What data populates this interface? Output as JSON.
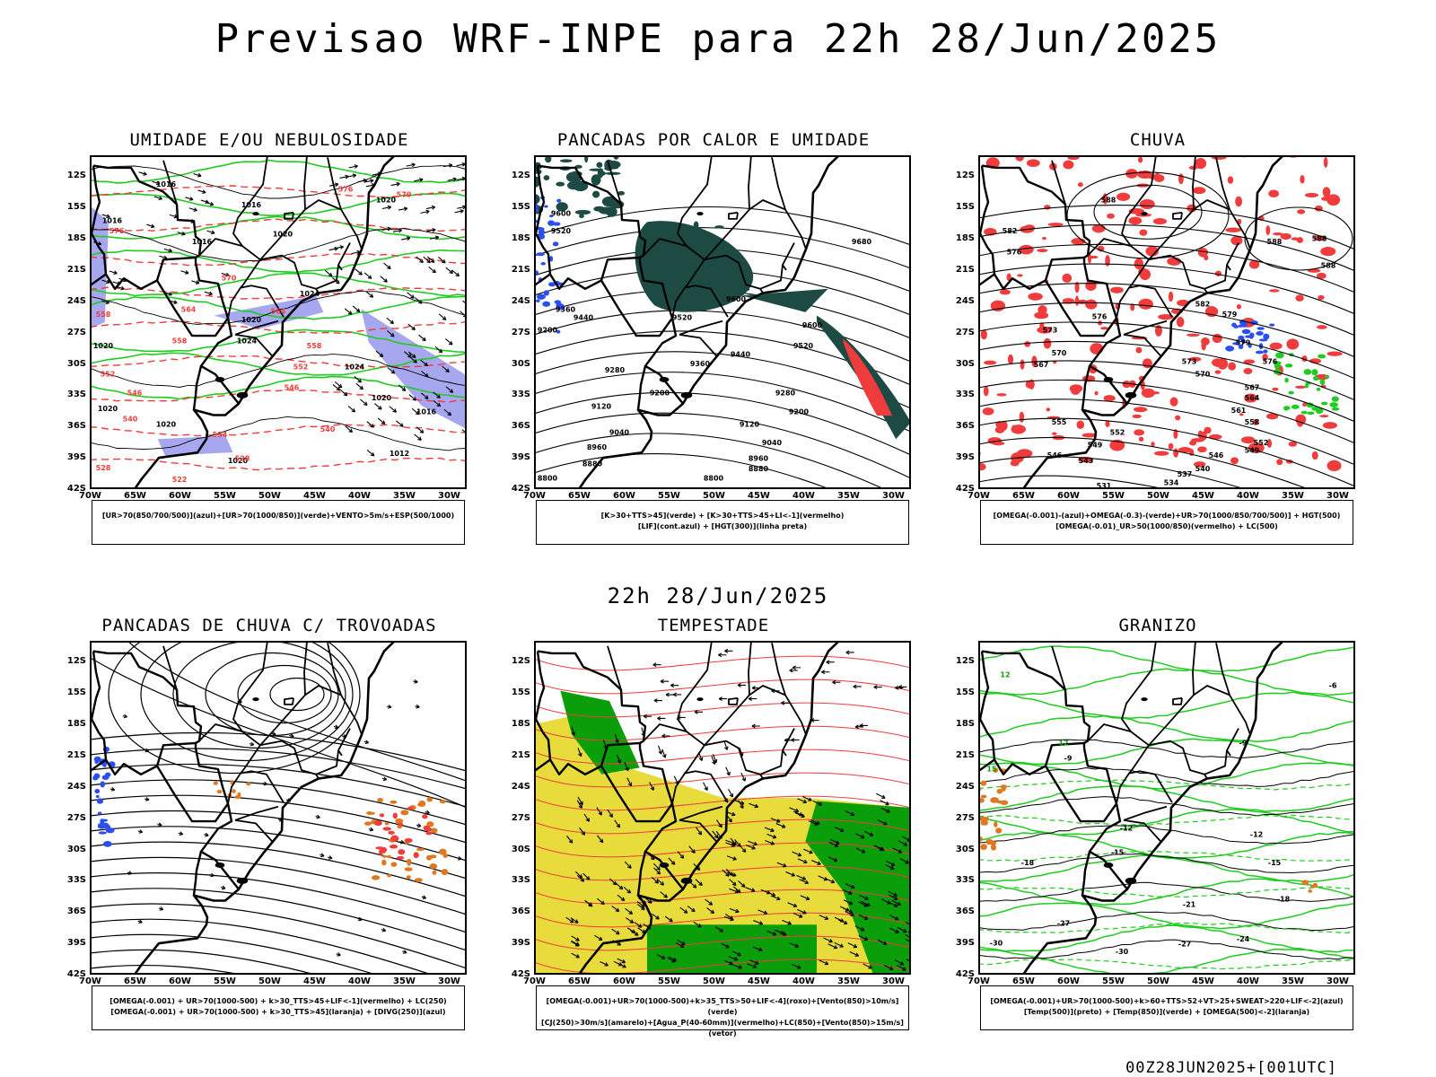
{
  "header": {
    "main_title": "Previsao WRF-INPE  para 22h 28/Jun/2025",
    "mid_title": "22h 28/Jun/2025",
    "footer": "00Z28JUN2025+[001UTC]"
  },
  "axes": {
    "lat_labels": [
      "12S",
      "15S",
      "18S",
      "21S",
      "24S",
      "27S",
      "30S",
      "33S",
      "36S",
      "39S",
      "42S"
    ],
    "lon_labels": [
      "70W",
      "65W",
      "60W",
      "55W",
      "50W",
      "45W",
      "40W",
      "35W",
      "30W"
    ]
  },
  "colors": {
    "blue_fill": "#a7a7f0",
    "green": "#1fcc1f",
    "red": "#f03c3c",
    "dark_teal": "#1e4a44",
    "yellow": "#e8dc3c",
    "bright_green": "#0a9e0a",
    "orange": "#e07820",
    "blue": "#2a4ef0"
  },
  "panels": [
    {
      "title": "UMIDADE E/OU NEBULOSIDADE",
      "legend_lines": [
        "[UR>70(850/700/500)](azul)+[UR>70(1000/850)](verde)+VENTO>5m/s+ESP(500/1000)",
        ""
      ],
      "contour_labels": [
        {
          "text": "1016",
          "lon": -61.5,
          "lat": -13.0,
          "color": "black"
        },
        {
          "text": "1016",
          "lon": -67.5,
          "lat": -16.5,
          "color": "black"
        },
        {
          "text": "1016",
          "lon": -57.5,
          "lat": -18.5,
          "color": "black"
        },
        {
          "text": "1016",
          "lon": -52.0,
          "lat": -15.0,
          "color": "black"
        },
        {
          "text": "1020",
          "lon": -48.5,
          "lat": -17.8,
          "color": "black"
        },
        {
          "text": "1020",
          "lon": -37.0,
          "lat": -14.5,
          "color": "black"
        },
        {
          "text": "1024",
          "lon": -45.5,
          "lat": -23.5,
          "color": "black"
        },
        {
          "text": "1020",
          "lon": -52.0,
          "lat": -26.0,
          "color": "black"
        },
        {
          "text": "1024",
          "lon": -52.5,
          "lat": -28.0,
          "color": "black"
        },
        {
          "text": "1024",
          "lon": -40.5,
          "lat": -30.5,
          "color": "black"
        },
        {
          "text": "1020",
          "lon": -68.5,
          "lat": -28.5,
          "color": "black"
        },
        {
          "text": "1020",
          "lon": -68.0,
          "lat": -34.5,
          "color": "black"
        },
        {
          "text": "1020",
          "lon": -61.5,
          "lat": -36.0,
          "color": "black"
        },
        {
          "text": "1020",
          "lon": -37.5,
          "lat": -33.5,
          "color": "black"
        },
        {
          "text": "1016",
          "lon": -32.5,
          "lat": -34.8,
          "color": "black"
        },
        {
          "text": "1012",
          "lon": -35.5,
          "lat": -38.8,
          "color": "black"
        },
        {
          "text": "1020",
          "lon": -53.5,
          "lat": -39.5,
          "color": "black"
        },
        {
          "text": "576",
          "lon": -41.5,
          "lat": -13.5,
          "color": "red"
        },
        {
          "text": "570",
          "lon": -35.0,
          "lat": -14.0,
          "color": "red"
        },
        {
          "text": "576",
          "lon": -67.0,
          "lat": -17.5,
          "color": "red"
        },
        {
          "text": "570",
          "lon": -54.5,
          "lat": -22.0,
          "color": "red"
        },
        {
          "text": "564",
          "lon": -59.0,
          "lat": -25.0,
          "color": "red"
        },
        {
          "text": "564",
          "lon": -49.0,
          "lat": -25.2,
          "color": "red"
        },
        {
          "text": "558",
          "lon": -60.0,
          "lat": -28.0,
          "color": "red"
        },
        {
          "text": "558",
          "lon": -45.0,
          "lat": -28.5,
          "color": "red"
        },
        {
          "text": "552",
          "lon": -46.5,
          "lat": -30.5,
          "color": "red"
        },
        {
          "text": "546",
          "lon": -47.5,
          "lat": -32.5,
          "color": "red"
        },
        {
          "text": "546",
          "lon": -65.0,
          "lat": -33.0,
          "color": "red"
        },
        {
          "text": "540",
          "lon": -65.5,
          "lat": -35.5,
          "color": "red"
        },
        {
          "text": "540",
          "lon": -43.5,
          "lat": -36.5,
          "color": "red"
        },
        {
          "text": "534",
          "lon": -55.5,
          "lat": -37.0,
          "color": "red"
        },
        {
          "text": "528",
          "lon": -53.0,
          "lat": -39.3,
          "color": "red"
        },
        {
          "text": "528",
          "lon": -68.5,
          "lat": -40.2,
          "color": "red"
        },
        {
          "text": "522",
          "lon": -60.0,
          "lat": -41.3,
          "color": "red"
        },
        {
          "text": "552",
          "lon": -68.0,
          "lat": -31.2,
          "color": "red"
        },
        {
          "text": "558",
          "lon": -68.5,
          "lat": -25.5,
          "color": "red"
        }
      ]
    },
    {
      "title": "PANCADAS POR CALOR E UMIDADE",
      "legend_lines": [
        "[K>30+TTS>45](verde) + [K>30+TTS>45+LI<-1](vermelho)",
        "[LIF](cont.azul) + [HGT(300)](linha preta)"
      ],
      "contour_labels": [
        {
          "text": "9600",
          "lon": -67.0,
          "lat": -15.8,
          "color": "black"
        },
        {
          "text": "9520",
          "lon": -67.0,
          "lat": -17.5,
          "color": "black"
        },
        {
          "text": "9680",
          "lon": -33.5,
          "lat": -18.5,
          "color": "black"
        },
        {
          "text": "9600",
          "lon": -47.5,
          "lat": -24.0,
          "color": "black"
        },
        {
          "text": "9520",
          "lon": -53.5,
          "lat": -25.8,
          "color": "black"
        },
        {
          "text": "9440",
          "lon": -64.5,
          "lat": -25.8,
          "color": "black"
        },
        {
          "text": "9360",
          "lon": -66.5,
          "lat": -25.0,
          "color": "black"
        },
        {
          "text": "9600",
          "lon": -39.0,
          "lat": -26.5,
          "color": "black"
        },
        {
          "text": "9520",
          "lon": -40.0,
          "lat": -28.5,
          "color": "black"
        },
        {
          "text": "9200",
          "lon": -68.5,
          "lat": -27.0,
          "color": "black"
        },
        {
          "text": "9440",
          "lon": -47.0,
          "lat": -29.3,
          "color": "black"
        },
        {
          "text": "9360",
          "lon": -51.5,
          "lat": -30.2,
          "color": "black"
        },
        {
          "text": "9280",
          "lon": -61.0,
          "lat": -30.8,
          "color": "black"
        },
        {
          "text": "9200",
          "lon": -56.0,
          "lat": -33.0,
          "color": "black"
        },
        {
          "text": "9280",
          "lon": -42.0,
          "lat": -33.0,
          "color": "black"
        },
        {
          "text": "9120",
          "lon": -62.5,
          "lat": -34.3,
          "color": "black"
        },
        {
          "text": "9200",
          "lon": -40.5,
          "lat": -34.8,
          "color": "black"
        },
        {
          "text": "9120",
          "lon": -46.0,
          "lat": -36.0,
          "color": "black"
        },
        {
          "text": "9040",
          "lon": -60.5,
          "lat": -36.8,
          "color": "black"
        },
        {
          "text": "9040",
          "lon": -43.5,
          "lat": -37.8,
          "color": "black"
        },
        {
          "text": "8960",
          "lon": -63.0,
          "lat": -38.2,
          "color": "black"
        },
        {
          "text": "8960",
          "lon": -45.0,
          "lat": -39.3,
          "color": "black"
        },
        {
          "text": "8880",
          "lon": -63.5,
          "lat": -39.8,
          "color": "black"
        },
        {
          "text": "8880",
          "lon": -45.0,
          "lat": -40.3,
          "color": "black"
        },
        {
          "text": "8800",
          "lon": -68.5,
          "lat": -41.2,
          "color": "black"
        },
        {
          "text": "8800",
          "lon": -50.0,
          "lat": -41.2,
          "color": "black"
        }
      ]
    },
    {
      "title": "CHUVA",
      "legend_lines": [
        "[OMEGA(-0.001)-(azul)+OMEGA(-0.3)-(verde)+UR>70(1000/850/700/500)] + HGT(500)",
        "[OMEGA(-0.01)_UR>50(1000/850)(vermelho) + LC(500)"
      ],
      "contour_labels": [
        {
          "text": "588",
          "lon": -55.5,
          "lat": -14.5,
          "color": "black"
        },
        {
          "text": "588",
          "lon": -37.0,
          "lat": -18.5,
          "color": "black"
        },
        {
          "text": "588",
          "lon": -32.0,
          "lat": -18.2,
          "color": "black"
        },
        {
          "text": "588",
          "lon": -31.0,
          "lat": -20.8,
          "color": "black"
        },
        {
          "text": "582",
          "lon": -66.5,
          "lat": -17.5,
          "color": "black"
        },
        {
          "text": "576",
          "lon": -66.0,
          "lat": -19.5,
          "color": "black"
        },
        {
          "text": "576",
          "lon": -56.5,
          "lat": -25.7,
          "color": "black"
        },
        {
          "text": "582",
          "lon": -45.0,
          "lat": -24.5,
          "color": "black"
        },
        {
          "text": "579",
          "lon": -42.0,
          "lat": -25.5,
          "color": "black"
        },
        {
          "text": "573",
          "lon": -62.0,
          "lat": -27.0,
          "color": "black"
        },
        {
          "text": "579",
          "lon": -40.5,
          "lat": -28.2,
          "color": "black"
        },
        {
          "text": "573",
          "lon": -46.5,
          "lat": -30.0,
          "color": "black"
        },
        {
          "text": "576",
          "lon": -37.5,
          "lat": -30.0,
          "color": "black"
        },
        {
          "text": "570",
          "lon": -45.0,
          "lat": -31.2,
          "color": "black"
        },
        {
          "text": "570",
          "lon": -61.0,
          "lat": -29.2,
          "color": "black"
        },
        {
          "text": "567",
          "lon": -63.0,
          "lat": -30.3,
          "color": "black"
        },
        {
          "text": "567",
          "lon": -39.5,
          "lat": -32.5,
          "color": "black"
        },
        {
          "text": "564",
          "lon": -39.5,
          "lat": -33.5,
          "color": "black"
        },
        {
          "text": "561",
          "lon": -41.0,
          "lat": -34.7,
          "color": "black"
        },
        {
          "text": "558",
          "lon": -39.5,
          "lat": -35.8,
          "color": "black"
        },
        {
          "text": "555",
          "lon": -61.0,
          "lat": -35.8,
          "color": "black"
        },
        {
          "text": "552",
          "lon": -54.5,
          "lat": -36.8,
          "color": "black"
        },
        {
          "text": "549",
          "lon": -57.0,
          "lat": -38.0,
          "color": "black"
        },
        {
          "text": "552",
          "lon": -38.5,
          "lat": -37.8,
          "color": "black"
        },
        {
          "text": "549",
          "lon": -39.5,
          "lat": -38.5,
          "color": "black"
        },
        {
          "text": "546",
          "lon": -61.5,
          "lat": -39.0,
          "color": "black"
        },
        {
          "text": "543",
          "lon": -58.0,
          "lat": -39.5,
          "color": "black"
        },
        {
          "text": "546",
          "lon": -43.5,
          "lat": -39.0,
          "color": "black"
        },
        {
          "text": "540",
          "lon": -45.0,
          "lat": -40.3,
          "color": "black"
        },
        {
          "text": "537",
          "lon": -47.0,
          "lat": -40.8,
          "color": "black"
        },
        {
          "text": "534",
          "lon": -48.5,
          "lat": -41.6,
          "color": "black"
        },
        {
          "text": "531",
          "lon": -56.0,
          "lat": -41.9,
          "color": "black"
        }
      ]
    },
    {
      "title": "PANCADAS DE CHUVA C/ TROVOADAS",
      "legend_lines": [
        "[OMEGA(-0.001) + UR>70(1000-500) + k>30_TTS>45+LIF<-1](vermelho) + LC(250)",
        "[OMEGA(-0.001) + UR>70(1000-500) + k>30_TTS>45](laranja) + [DIVG(250)](azul)"
      ],
      "contour_labels": []
    },
    {
      "title": "TEMPESTADE",
      "legend_lines": [
        "[OMEGA(-0.001)+UR>70(1000-500)+k>35_TTS>50+LIF<-4](roxo)+[Vento(850)>10m/s](verde)",
        "[CJ(250)>30m/s](amarelo)+[Agua_P(40-60mm)](vermelho)+LC(850)+[Vento(850)>15m/s](vetor)"
      ],
      "contour_labels": []
    },
    {
      "title": "GRANIZO",
      "legend_lines": [
        "[OMEGA(-0.001)+UR>70(1000-500)+k>60+TTS>52+VT>25+SWEAT>220+LIF<-2](azul)",
        "[Temp(500)](preto) + [Temp(850)](verde) + [OMEGA(500)<-2](laranja)"
      ],
      "contour_labels": [
        {
          "text": "-6",
          "lon": -30.5,
          "lat": -14.5,
          "color": "black"
        },
        {
          "text": "-9",
          "lon": -40.5,
          "lat": -20.0,
          "color": "black"
        },
        {
          "text": "-9",
          "lon": -60.0,
          "lat": -21.5,
          "color": "black"
        },
        {
          "text": "-12",
          "lon": -53.5,
          "lat": -28.2,
          "color": "black"
        },
        {
          "text": "-12",
          "lon": -39.0,
          "lat": -28.8,
          "color": "black"
        },
        {
          "text": "-15",
          "lon": -54.5,
          "lat": -30.5,
          "color": "black"
        },
        {
          "text": "-15",
          "lon": -37.0,
          "lat": -31.5,
          "color": "black"
        },
        {
          "text": "-18",
          "lon": -64.5,
          "lat": -31.5,
          "color": "black"
        },
        {
          "text": "-18",
          "lon": -36.0,
          "lat": -35.0,
          "color": "black"
        },
        {
          "text": "-21",
          "lon": -46.5,
          "lat": -35.5,
          "color": "black"
        },
        {
          "text": "-24",
          "lon": -40.5,
          "lat": -38.8,
          "color": "black"
        },
        {
          "text": "-27",
          "lon": -60.5,
          "lat": -37.3,
          "color": "black"
        },
        {
          "text": "-27",
          "lon": -47.0,
          "lat": -39.3,
          "color": "black"
        },
        {
          "text": "-30",
          "lon": -68.0,
          "lat": -39.2,
          "color": "black"
        },
        {
          "text": "-30",
          "lon": -54.0,
          "lat": -40.0,
          "color": "black"
        },
        {
          "text": "12",
          "lon": -67.0,
          "lat": -13.5,
          "color": "green"
        },
        {
          "text": "12",
          "lon": -60.5,
          "lat": -20.0,
          "color": "green"
        },
        {
          "text": "15",
          "lon": -68.5,
          "lat": -22.5,
          "color": "green"
        }
      ]
    }
  ]
}
